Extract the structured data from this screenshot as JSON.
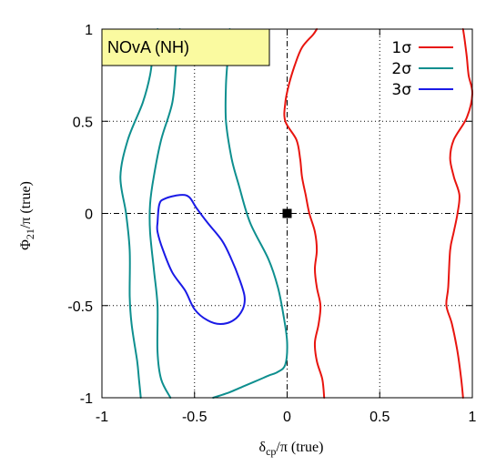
{
  "chart_data": {
    "type": "line",
    "title": "NOvA (NH)",
    "xlabel": "δcp/π (true)",
    "xlabel_main": "δ",
    "xlabel_sub": "cp",
    "xlabel_rest": "/π (true)",
    "ylabel": "Φ21/π (true)",
    "ylabel_main": "Φ",
    "ylabel_sub": "21",
    "ylabel_rest": "/π (true)",
    "xlim": [
      -1,
      1
    ],
    "ylim": [
      -1,
      1
    ],
    "xticks": [
      -1,
      -0.5,
      0,
      0.5,
      1
    ],
    "yticks": [
      -1,
      -0.5,
      0,
      0.5,
      1
    ],
    "xtick_labels": [
      "-1",
      "-0.5",
      "0",
      "0.5",
      "1"
    ],
    "ytick_labels": [
      "-1",
      "-0.5",
      "0",
      "0.5",
      "1"
    ],
    "grid": true,
    "legend_position": "top-right",
    "colors": {
      "one_sigma": "#e8150f",
      "two_sigma": "#0e8f8f",
      "three_sigma": "#1a1ae6",
      "title_box_fill": "#fafaa0",
      "marker": "#000000"
    },
    "true_point": {
      "x": 0.0,
      "y": 0.0
    },
    "series": [
      {
        "name": "1σ",
        "color": "#e8150f",
        "segments": [
          [
            [
              0.2,
              -1.0
            ],
            [
              0.19,
              -0.9
            ],
            [
              0.16,
              -0.8
            ],
            [
              0.15,
              -0.7
            ],
            [
              0.17,
              -0.6
            ],
            [
              0.18,
              -0.5
            ],
            [
              0.16,
              -0.4
            ],
            [
              0.15,
              -0.3
            ],
            [
              0.16,
              -0.2
            ],
            [
              0.15,
              -0.1
            ],
            [
              0.12,
              0.0
            ],
            [
              0.1,
              0.1
            ],
            [
              0.08,
              0.2
            ],
            [
              0.07,
              0.3
            ],
            [
              0.05,
              0.4
            ],
            [
              -0.01,
              0.5
            ],
            [
              -0.01,
              0.6
            ],
            [
              0.01,
              0.7
            ],
            [
              0.04,
              0.8
            ],
            [
              0.08,
              0.9
            ],
            [
              0.14,
              0.97
            ],
            [
              0.16,
              1.0
            ]
          ],
          [
            [
              0.95,
              -1.0
            ],
            [
              0.94,
              -0.9
            ],
            [
              0.92,
              -0.75
            ],
            [
              0.89,
              -0.6
            ],
            [
              0.86,
              -0.5
            ],
            [
              0.87,
              -0.4
            ],
            [
              0.88,
              -0.2
            ],
            [
              0.9,
              -0.1
            ],
            [
              0.92,
              0.0
            ],
            [
              0.93,
              0.1
            ],
            [
              0.9,
              0.2
            ],
            [
              0.88,
              0.3
            ],
            [
              0.9,
              0.4
            ],
            [
              0.97,
              0.52
            ],
            [
              1.0,
              0.65
            ],
            [
              0.98,
              0.75
            ],
            [
              0.97,
              0.85
            ],
            [
              0.96,
              0.93
            ],
            [
              0.95,
              1.0
            ]
          ]
        ]
      },
      {
        "name": "2σ",
        "color": "#0e8f8f",
        "segments": [
          [
            [
              -0.79,
              -1.0
            ],
            [
              -0.8,
              -0.9
            ],
            [
              -0.81,
              -0.8
            ],
            [
              -0.84,
              -0.6
            ],
            [
              -0.85,
              -0.45
            ],
            [
              -0.85,
              -0.2
            ],
            [
              -0.87,
              0.0
            ],
            [
              -0.9,
              0.2
            ],
            [
              -0.86,
              0.4
            ],
            [
              -0.78,
              0.6
            ],
            [
              -0.74,
              0.75
            ],
            [
              -0.72,
              0.9
            ],
            [
              -0.7,
              1.0
            ]
          ],
          [
            [
              -0.63,
              -1.0
            ],
            [
              -0.68,
              -0.9
            ],
            [
              -0.7,
              -0.75
            ],
            [
              -0.7,
              -0.5
            ],
            [
              -0.72,
              -0.3
            ],
            [
              -0.74,
              -0.1
            ],
            [
              -0.74,
              0.05
            ],
            [
              -0.72,
              0.2
            ],
            [
              -0.68,
              0.4
            ],
            [
              -0.62,
              0.6
            ],
            [
              -0.6,
              0.8
            ],
            [
              -0.58,
              1.0
            ]
          ],
          [
            [
              -0.4,
              -1.0
            ],
            [
              -0.31,
              -0.97
            ],
            [
              -0.24,
              -0.94
            ],
            [
              -0.17,
              -0.91
            ],
            [
              -0.1,
              -0.88
            ],
            [
              -0.05,
              -0.86
            ],
            [
              -0.01,
              -0.82
            ],
            [
              0.0,
              -0.7
            ],
            [
              -0.02,
              -0.55
            ],
            [
              -0.05,
              -0.4
            ],
            [
              -0.1,
              -0.25
            ],
            [
              -0.2,
              -0.05
            ],
            [
              -0.26,
              0.15
            ],
            [
              -0.3,
              0.3
            ],
            [
              -0.33,
              0.5
            ],
            [
              -0.33,
              0.7
            ],
            [
              -0.32,
              0.85
            ],
            [
              -0.31,
              1.0
            ]
          ]
        ]
      },
      {
        "name": "3σ",
        "color": "#1a1ae6",
        "segments": [
          [
            [
              -0.7,
              -0.05
            ],
            [
              -0.69,
              0.05
            ],
            [
              -0.66,
              0.08
            ],
            [
              -0.58,
              0.1
            ],
            [
              -0.53,
              0.09
            ],
            [
              -0.49,
              0.03
            ],
            [
              -0.43,
              -0.05
            ],
            [
              -0.35,
              -0.15
            ],
            [
              -0.3,
              -0.25
            ],
            [
              -0.26,
              -0.35
            ],
            [
              -0.23,
              -0.45
            ],
            [
              -0.24,
              -0.52
            ],
            [
              -0.29,
              -0.58
            ],
            [
              -0.36,
              -0.6
            ],
            [
              -0.43,
              -0.58
            ],
            [
              -0.5,
              -0.52
            ],
            [
              -0.55,
              -0.42
            ],
            [
              -0.62,
              -0.32
            ],
            [
              -0.67,
              -0.2
            ],
            [
              -0.7,
              -0.1
            ],
            [
              -0.7,
              -0.05
            ]
          ]
        ]
      }
    ]
  }
}
